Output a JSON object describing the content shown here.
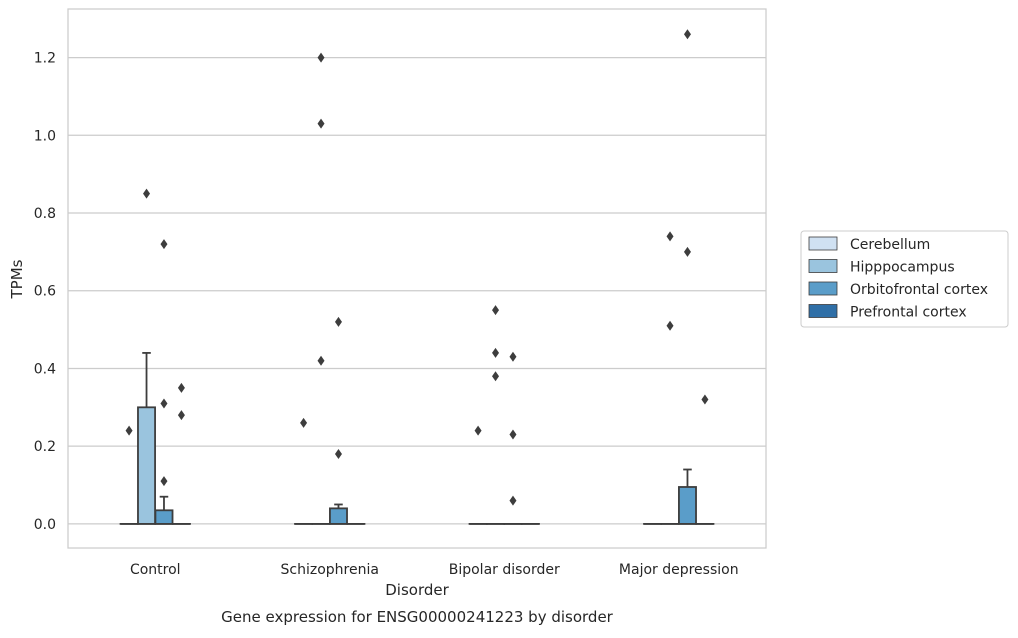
{
  "chart_data": {
    "type": "box",
    "title": "",
    "caption": "Gene expression for ENSG00000241223 by disorder",
    "xlabel": "Disorder",
    "ylabel": "TPMs",
    "ylim": [
      -0.062,
      1.325
    ],
    "yticks": [
      0.0,
      0.2,
      0.4,
      0.6,
      0.8,
      1.0,
      1.2
    ],
    "ytick_labels": [
      "0.0",
      "0.2",
      "0.4",
      "0.6",
      "0.8",
      "1.0",
      "1.2"
    ],
    "grid": "horizontal",
    "legend_position": "right",
    "categories": [
      "Control",
      "Schizophrenia",
      "Bipolar disorder",
      "Major depression"
    ],
    "series": [
      {
        "name": "Cerebellum",
        "color": "#d0e1f2",
        "boxes": [
          {
            "q1": 0.0,
            "median": 0.0,
            "q3": 0.0,
            "whisker_low": 0.0,
            "whisker_high": 0.0,
            "outliers": [
              0.24
            ]
          },
          {
            "q1": 0.0,
            "median": 0.0,
            "q3": 0.0,
            "whisker_low": 0.0,
            "whisker_high": 0.0,
            "outliers": [
              0.26
            ]
          },
          {
            "q1": 0.0,
            "median": 0.0,
            "q3": 0.0,
            "whisker_low": 0.0,
            "whisker_high": 0.0,
            "outliers": [
              0.24
            ]
          },
          {
            "q1": 0.0,
            "median": 0.0,
            "q3": 0.0,
            "whisker_low": 0.0,
            "whisker_high": 0.0,
            "outliers": []
          }
        ]
      },
      {
        "name": "Hipppocampus",
        "color": "#9ac4de",
        "boxes": [
          {
            "q1": 0.0,
            "median": 0.0,
            "q3": 0.3,
            "whisker_low": 0.0,
            "whisker_high": 0.44,
            "outliers": [
              0.85
            ]
          },
          {
            "q1": 0.0,
            "median": 0.0,
            "q3": 0.0,
            "whisker_low": 0.0,
            "whisker_high": 0.0,
            "outliers": [
              1.2,
              1.03,
              0.42
            ]
          },
          {
            "q1": 0.0,
            "median": 0.0,
            "q3": 0.0,
            "whisker_low": 0.0,
            "whisker_high": 0.0,
            "outliers": [
              0.55,
              0.44,
              0.38
            ]
          },
          {
            "q1": 0.0,
            "median": 0.0,
            "q3": 0.0,
            "whisker_low": 0.0,
            "whisker_high": 0.0,
            "outliers": [
              0.74,
              0.51
            ]
          }
        ]
      },
      {
        "name": "Orbitofrontal cortex",
        "color": "#5a9dc9",
        "boxes": [
          {
            "q1": 0.0,
            "median": 0.0,
            "q3": 0.035,
            "whisker_low": 0.0,
            "whisker_high": 0.07,
            "outliers": [
              0.72,
              0.31,
              0.11
            ]
          },
          {
            "q1": 0.0,
            "median": 0.0,
            "q3": 0.04,
            "whisker_low": 0.0,
            "whisker_high": 0.05,
            "outliers": [
              0.52,
              0.18
            ]
          },
          {
            "q1": 0.0,
            "median": 0.0,
            "q3": 0.0,
            "whisker_low": 0.0,
            "whisker_high": 0.0,
            "outliers": [
              0.43,
              0.23,
              0.06
            ]
          },
          {
            "q1": 0.0,
            "median": 0.0,
            "q3": 0.095,
            "whisker_low": 0.0,
            "whisker_high": 0.14,
            "outliers": [
              1.26,
              0.7
            ]
          }
        ]
      },
      {
        "name": "Prefrontal cortex",
        "color": "#2f6fa7",
        "boxes": [
          {
            "q1": 0.0,
            "median": 0.0,
            "q3": 0.0,
            "whisker_low": 0.0,
            "whisker_high": 0.0,
            "outliers": [
              0.35,
              0.28
            ]
          },
          {
            "q1": 0.0,
            "median": 0.0,
            "q3": 0.0,
            "whisker_low": 0.0,
            "whisker_high": 0.0,
            "outliers": []
          },
          {
            "q1": 0.0,
            "median": 0.0,
            "q3": 0.0,
            "whisker_low": 0.0,
            "whisker_high": 0.0,
            "outliers": []
          },
          {
            "q1": 0.0,
            "median": 0.0,
            "q3": 0.0,
            "whisker_low": 0.0,
            "whisker_high": 0.0,
            "outliers": [
              0.32
            ]
          }
        ]
      }
    ]
  },
  "colors": {
    "axes_edge": "#cccccc",
    "grid": "#cccccc",
    "box_edge": "#3d3d3d",
    "text": "#262626",
    "legend_border": "#cccccc"
  }
}
